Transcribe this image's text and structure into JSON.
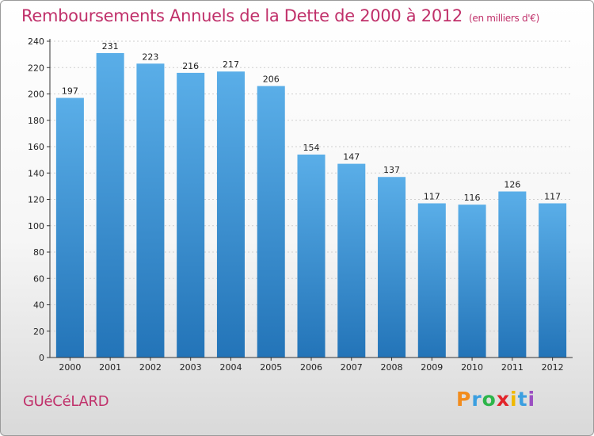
{
  "chart_data": {
    "type": "bar",
    "title": "Remboursements Annuels de la Dette de 2000 à 2012",
    "subtitle": "(en milliers d'€)",
    "categories": [
      "2000",
      "2001",
      "2002",
      "2003",
      "2004",
      "2005",
      "2006",
      "2007",
      "2008",
      "2009",
      "2010",
      "2011",
      "2012"
    ],
    "values": [
      197,
      231,
      223,
      216,
      217,
      206,
      154,
      147,
      137,
      117,
      116,
      126,
      117
    ],
    "ylim": [
      0,
      240
    ],
    "yticks": [
      0,
      20,
      40,
      60,
      80,
      100,
      120,
      140,
      160,
      180,
      200,
      220,
      240
    ],
    "xlabel": "",
    "ylabel": "",
    "bar_color_top": "#5aaee8",
    "bar_color_bottom": "#2374b8"
  },
  "footer": {
    "commune": "GUéCéLARD",
    "logo_letters": [
      "P",
      "r",
      "o",
      "x",
      "i",
      "t",
      "i"
    ],
    "logo_colors": [
      "#f28c1d",
      "#3b9fe0",
      "#2db54a",
      "#e2252b",
      "#f0b800",
      "#3b9fe0",
      "#9b4fc2"
    ]
  },
  "colors": {
    "title": "#c0306a"
  }
}
